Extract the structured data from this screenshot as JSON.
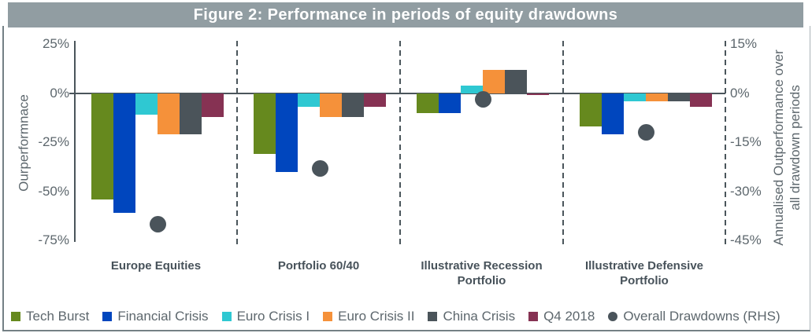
{
  "title": "Figure 2: Performance in periods of equity drawdowns",
  "colors": {
    "title_bar": "#919da2",
    "axis_line": "#4a555b",
    "tick_text": "#5d676d",
    "category_text": "#47525a",
    "frame_border": "#748085"
  },
  "chart_data": {
    "type": "bar",
    "title": "Figure 2: Performance in periods of equity drawdowns",
    "categories": [
      "Europe Equities",
      "Portfolio 60/40",
      "Illustrative Recession Portfolio",
      "Illustrative Defensive Portfolio"
    ],
    "category_label_lines": [
      [
        "Europe Equities"
      ],
      [
        "Portfolio 60/40"
      ],
      [
        "Illustrative Recession",
        "Portfolio"
      ],
      [
        "Illustrative Defensive",
        "Portfolio"
      ]
    ],
    "left_axis": {
      "label": "Ourperformnace",
      "ticks": [
        "25%",
        "0%",
        "-25%",
        "-50%",
        "-75%"
      ],
      "range": [
        25,
        -75
      ],
      "unit": "%"
    },
    "right_axis": {
      "label": "Annualised Outperformance over all drawdown periods",
      "label_lines": [
        "Annualised Outperformance over",
        "all drawdown periods"
      ],
      "ticks": [
        "15%",
        "0%",
        "-15%",
        "-30%",
        "-45%"
      ],
      "range": [
        15,
        -45
      ],
      "unit": "%"
    },
    "series": [
      {
        "name": "Tech Burst",
        "color": "#66891e",
        "values": [
          -54,
          -31,
          -10,
          -17
        ]
      },
      {
        "name": "Financial Crisis",
        "color": "#0046be",
        "values": [
          -61,
          -40,
          -10,
          -21
        ]
      },
      {
        "name": "Euro Crisis I",
        "color": "#2fc8d2",
        "values": [
          -11,
          -7,
          4,
          -4
        ]
      },
      {
        "name": "Euro Crisis II",
        "color": "#f5913a",
        "values": [
          -21,
          -12,
          12,
          -4
        ]
      },
      {
        "name": "China Crisis",
        "color": "#4b545a",
        "values": [
          -21,
          -12,
          12,
          -4
        ]
      },
      {
        "name": "Q4 2018",
        "color": "#863253",
        "values": [
          -12,
          -7,
          -1,
          -7
        ]
      }
    ],
    "point_series": {
      "name": "Overall Drawdowns (RHS)",
      "marker": "circle",
      "color": "#4a545b",
      "axis": "right",
      "values": [
        -40,
        -23,
        -2,
        -12
      ]
    },
    "grid": "dashed vertical separators between category groups",
    "legend_position": "bottom"
  }
}
